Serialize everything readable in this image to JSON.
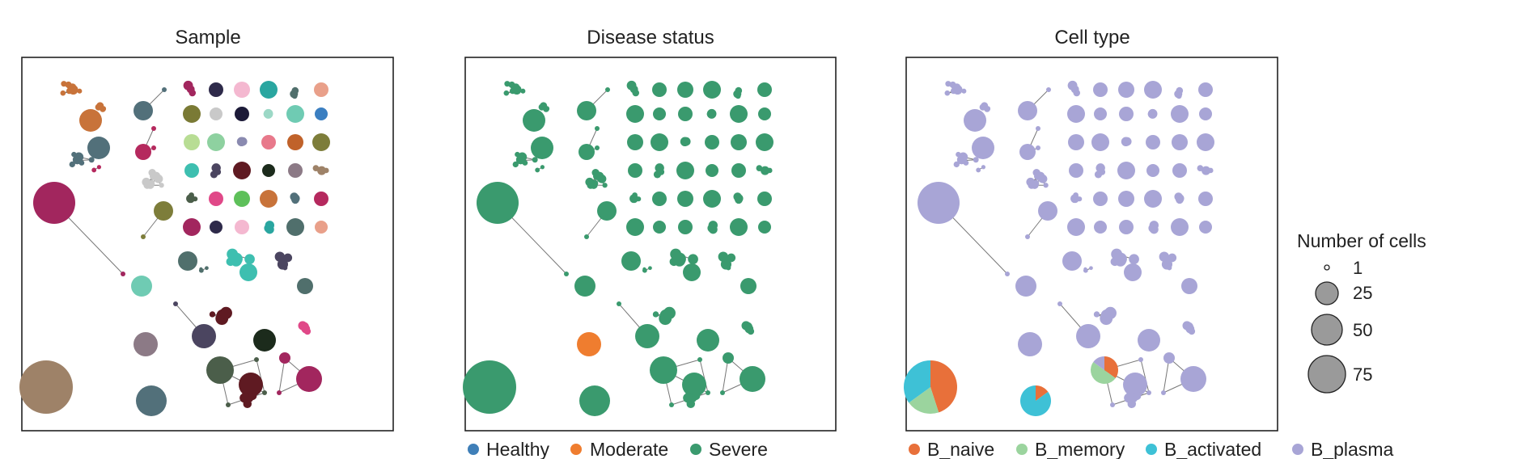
{
  "chart_data": [
    {
      "type": "network",
      "title": "Sample",
      "color_by": "sample",
      "colors": [
        "#c8733a",
        "#52707a",
        "#b5295e",
        "#a2265e",
        "#2e2a4a",
        "#f4b8d0",
        "#2aa6a0",
        "#506f6c",
        "#e9a08a",
        "#7a7a35",
        "#c9c9c9",
        "#1c1a38",
        "#9cd8c6",
        "#6fcbb3",
        "#3b7fc1",
        "#b8dd94",
        "#8ed1a0",
        "#8a8ab0",
        "#e8798b",
        "#c0622a",
        "#7d7d3a",
        "#3ebfb0",
        "#4b4560",
        "#5f1a22",
        "#1c2b1c",
        "#8c7a86",
        "#9e8268",
        "#4b5e4a",
        "#e04888",
        "#5ec05a"
      ],
      "clones": "network clusters of B cell clones; node size = number of cells"
    },
    {
      "type": "network",
      "title": "Disease status",
      "color_by": "disease status",
      "legend": [
        {
          "label": "Healthy",
          "color": "#3f7fb8"
        },
        {
          "label": "Moderate",
          "color": "#ef7d2f"
        },
        {
          "label": "Severe",
          "color": "#3a9a6e"
        }
      ]
    },
    {
      "type": "network",
      "title": "Cell type",
      "color_by": "cell type",
      "legend": [
        {
          "label": "B_naive",
          "color": "#e8703a"
        },
        {
          "label": "B_memory",
          "color": "#9bd49e"
        },
        {
          "label": "B_activated",
          "color": "#3ec1d6"
        },
        {
          "label": "B_plasma",
          "color": "#a8a5d6"
        }
      ],
      "pies": [
        {
          "segments": [
            {
              "type": "B_naive",
              "value": 0.45
            },
            {
              "type": "B_memory",
              "value": 0.2
            },
            {
              "type": "B_activated",
              "value": 0.35
            }
          ]
        },
        {
          "segments": [
            {
              "type": "B_naive",
              "value": 0.15
            },
            {
              "type": "B_activated",
              "value": 0.85
            }
          ]
        },
        {
          "segments": [
            {
              "type": "B_naive",
              "value": 0.35
            },
            {
              "type": "B_memory",
              "value": 0.5
            },
            {
              "type": "B_plasma",
              "value": 0.15
            }
          ]
        }
      ]
    }
  ],
  "size_legend": {
    "title": "Number of cells",
    "entries": [
      {
        "label": "1",
        "value": 1
      },
      {
        "label": "25",
        "value": 25
      },
      {
        "label": "50",
        "value": 50
      },
      {
        "label": "75",
        "value": 75
      }
    ],
    "fill": "#9a9a9a"
  }
}
